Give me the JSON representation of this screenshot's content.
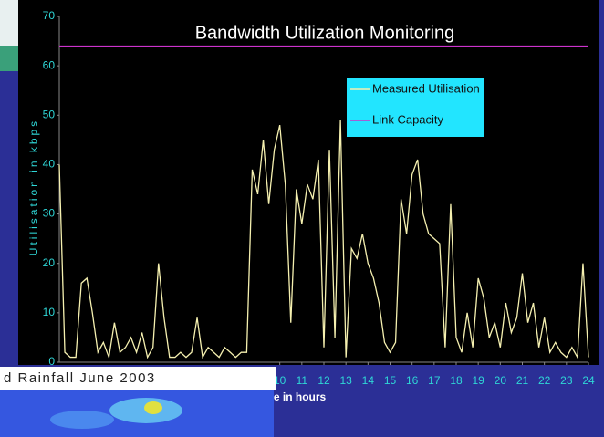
{
  "chart_data": {
    "type": "line",
    "title": "Bandwidth Utilization Monitoring",
    "x_label": "Time in hours",
    "y_label": "Utilisation in kbps",
    "series": [
      {
        "name": "Measured Utilisation",
        "color": "#f5f0b0",
        "x": [
          0,
          0.25,
          0.5,
          0.75,
          1,
          1.25,
          1.5,
          1.75,
          2,
          2.25,
          2.5,
          2.75,
          3,
          3.25,
          3.5,
          3.75,
          4,
          4.25,
          4.5,
          4.75,
          5,
          5.25,
          5.5,
          5.75,
          6,
          6.25,
          6.5,
          6.75,
          7,
          7.25,
          7.5,
          7.75,
          8,
          8.25,
          8.5,
          8.75,
          9,
          9.25,
          9.5,
          9.75,
          10,
          10.25,
          10.5,
          10.75,
          11,
          11.25,
          11.5,
          11.75,
          12,
          12.25,
          12.5,
          12.75,
          13,
          13.25,
          13.5,
          13.75,
          14,
          14.25,
          14.5,
          14.75,
          15,
          15.25,
          15.5,
          15.75,
          16,
          16.25,
          16.5,
          16.75,
          17,
          17.25,
          17.5,
          17.75,
          18,
          18.25,
          18.5,
          18.75,
          19,
          19.25,
          19.5,
          19.75,
          20,
          20.25,
          20.5,
          20.75,
          21,
          21.25,
          21.5,
          21.75,
          22,
          22.25,
          22.5,
          22.75,
          23,
          23.25,
          23.5,
          23.75,
          24
        ],
        "values": [
          40,
          2,
          1,
          1,
          16,
          17,
          10,
          2,
          4,
          1,
          8,
          2,
          3,
          5,
          2,
          6,
          1,
          3,
          20,
          9,
          1,
          1,
          2,
          1,
          2,
          9,
          1,
          3,
          2,
          1,
          3,
          2,
          1,
          2,
          2,
          39,
          34,
          45,
          32,
          43,
          48,
          36,
          8,
          35,
          28,
          36,
          33,
          41,
          3,
          43,
          5,
          49,
          1,
          23,
          21,
          26,
          20,
          17,
          12,
          4,
          2,
          4,
          33,
          26,
          38,
          41,
          30,
          26,
          25,
          24,
          3,
          32,
          5,
          2,
          10,
          3,
          17,
          13,
          5,
          8,
          3,
          12,
          6,
          9,
          18,
          8,
          12,
          3,
          9,
          2,
          4,
          2,
          1,
          3,
          1,
          20,
          1
        ]
      },
      {
        "name": "Link Capacity",
        "color": "#cc33cc",
        "x": [
          0,
          24
        ],
        "values": [
          64,
          64
        ]
      }
    ],
    "xlim": [
      0,
      24
    ],
    "xticks": [
      10,
      11,
      12,
      13,
      14,
      15,
      16,
      17,
      18,
      19,
      20,
      21,
      22,
      23,
      24
    ],
    "ylim": [
      0,
      70
    ],
    "yticks": [
      0,
      10,
      20,
      30,
      40,
      50,
      60,
      70
    ],
    "legend": "upper right"
  },
  "map_caption": "d Rainfall June 2003"
}
